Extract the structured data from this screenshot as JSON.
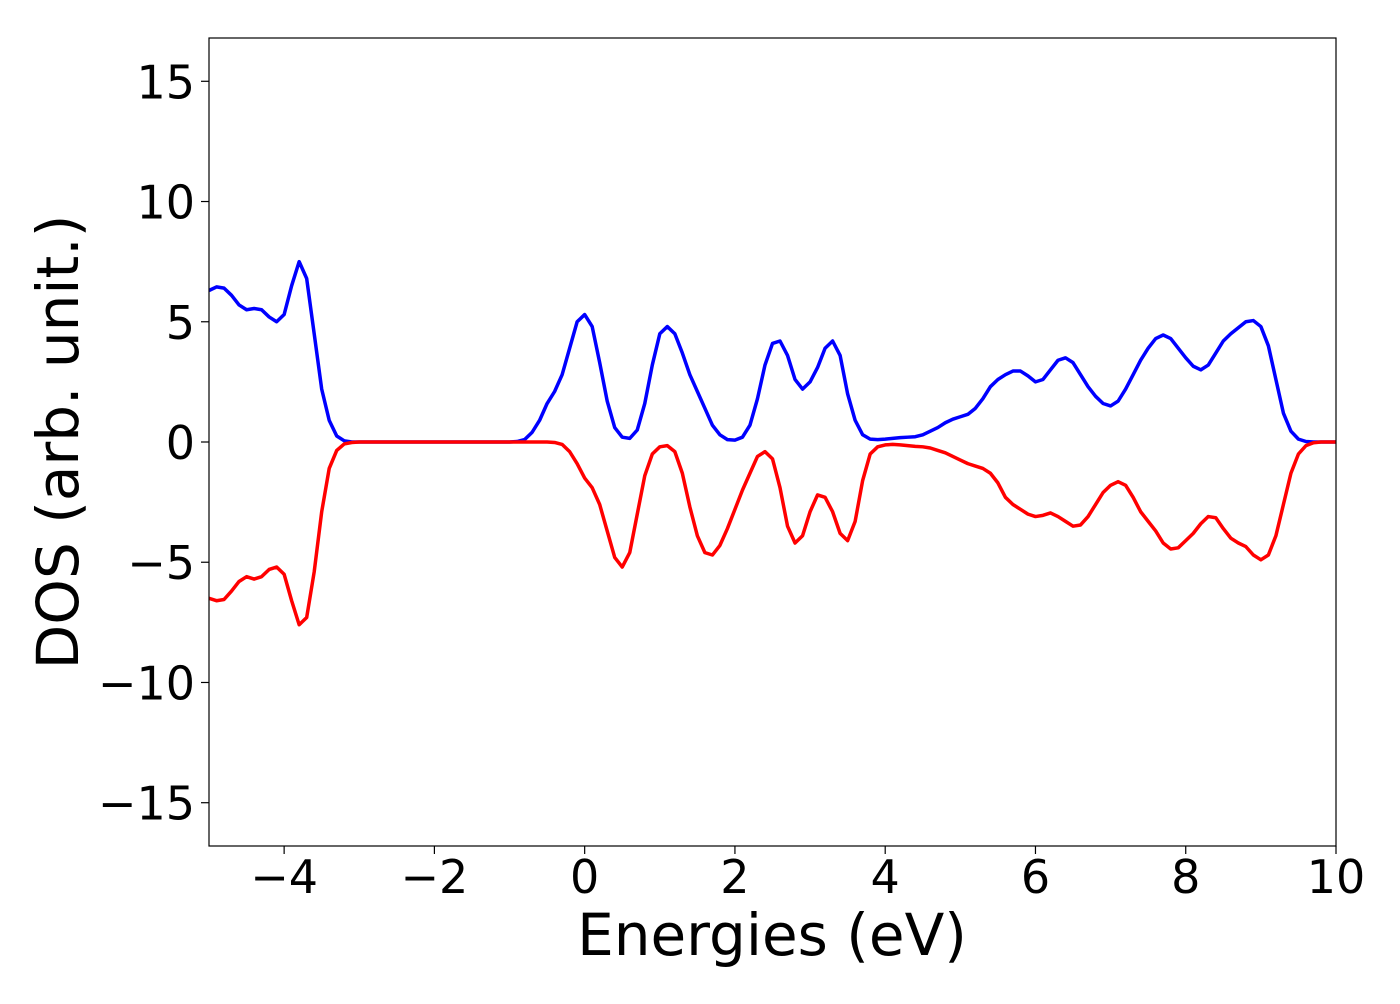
{
  "chart_data": {
    "type": "line",
    "x_label": "Energies (eV)",
    "y_label": "DOS (arb. unit.)",
    "xlim": [
      -5,
      10
    ],
    "ylim": [
      -16.8,
      16.8
    ],
    "xticks": [
      {
        "value": -4,
        "label": "−4"
      },
      {
        "value": -2,
        "label": "−2"
      },
      0,
      2,
      4,
      6,
      8,
      10
    ],
    "yticks": [
      {
        "value": -15,
        "label": "−15"
      },
      {
        "value": -10,
        "label": "−10"
      },
      {
        "value": -5,
        "label": "−5"
      },
      0,
      5,
      10,
      15
    ],
    "grid": false,
    "x": [
      -5,
      -4.9,
      -4.8,
      -4.7,
      -4.6,
      -4.5,
      -4.4,
      -4.3,
      -4.2,
      -4.1,
      -4,
      -3.9,
      -3.8,
      -3.7,
      -3.6,
      -3.5,
      -3.4,
      -3.3,
      -3.2,
      -3.1,
      -3,
      -2.9,
      -2.8,
      -2.7,
      -2.6,
      -2.5,
      -2.4,
      -2.3,
      -2.2,
      -2.1,
      -2,
      -1.9,
      -1.8,
      -1.7,
      -1.6,
      -1.5,
      -1.4,
      -1.3,
      -1.2,
      -1.1,
      -1,
      -0.9,
      -0.8,
      -0.7,
      -0.6,
      -0.5,
      -0.4,
      -0.3,
      -0.2,
      -0.1,
      0,
      0.1,
      0.2,
      0.3,
      0.4,
      0.5,
      0.6,
      0.7,
      0.8,
      0.9,
      1,
      1.1,
      1.2,
      1.3,
      1.4,
      1.5,
      1.6,
      1.7,
      1.8,
      1.9,
      2,
      2.1,
      2.2,
      2.3,
      2.4,
      2.5,
      2.6,
      2.7,
      2.8,
      2.9,
      3,
      3.1,
      3.2,
      3.3,
      3.4,
      3.5,
      3.6,
      3.7,
      3.8,
      3.9,
      4,
      4.1,
      4.2,
      4.3,
      4.4,
      4.5,
      4.6,
      4.7,
      4.8,
      4.9,
      5,
      5.1,
      5.2,
      5.3,
      5.4,
      5.5,
      5.6,
      5.7,
      5.8,
      5.9,
      6,
      6.1,
      6.2,
      6.3,
      6.4,
      6.5,
      6.6,
      6.7,
      6.8,
      6.9,
      7,
      7.1,
      7.2,
      7.3,
      7.4,
      7.5,
      7.6,
      7.7,
      7.8,
      7.9,
      8,
      8.1,
      8.2,
      8.3,
      8.4,
      8.5,
      8.6,
      8.7,
      8.8,
      8.9,
      9,
      9.1,
      9.2,
      9.3,
      9.4,
      9.5,
      9.6,
      9.7,
      9.8,
      9.9,
      10
    ],
    "series": [
      {
        "color": "#0000ff",
        "values": [
          6.3,
          6.45,
          6.4,
          6.1,
          5.7,
          5.5,
          5.55,
          5.5,
          5.2,
          5.0,
          5.3,
          6.5,
          7.5,
          6.8,
          4.5,
          2.2,
          0.9,
          0.25,
          0.05,
          0,
          0,
          0,
          0,
          0,
          0,
          0,
          0,
          0,
          0,
          0,
          0,
          0,
          0,
          0,
          0,
          0,
          0,
          0,
          0,
          0,
          0,
          0.02,
          0.1,
          0.4,
          0.9,
          1.6,
          2.1,
          2.8,
          3.9,
          5.0,
          5.3,
          4.8,
          3.3,
          1.7,
          0.6,
          0.2,
          0.15,
          0.5,
          1.6,
          3.2,
          4.5,
          4.8,
          4.5,
          3.7,
          2.8,
          2.1,
          1.4,
          0.7,
          0.3,
          0.1,
          0.08,
          0.2,
          0.7,
          1.8,
          3.2,
          4.1,
          4.2,
          3.6,
          2.6,
          2.2,
          2.5,
          3.1,
          3.9,
          4.2,
          3.6,
          2.0,
          0.9,
          0.3,
          0.12,
          0.1,
          0.12,
          0.15,
          0.18,
          0.2,
          0.22,
          0.3,
          0.45,
          0.6,
          0.8,
          0.95,
          1.05,
          1.15,
          1.4,
          1.8,
          2.3,
          2.6,
          2.8,
          2.95,
          2.95,
          2.75,
          2.5,
          2.6,
          3.0,
          3.4,
          3.5,
          3.3,
          2.8,
          2.3,
          1.9,
          1.6,
          1.5,
          1.7,
          2.2,
          2.8,
          3.4,
          3.9,
          4.3,
          4.45,
          4.3,
          3.9,
          3.5,
          3.15,
          3.0,
          3.2,
          3.7,
          4.2,
          4.5,
          4.75,
          5.0,
          5.05,
          4.8,
          4.0,
          2.6,
          1.2,
          0.45,
          0.12,
          0.02,
          0,
          0,
          0,
          0
        ]
      },
      {
        "color": "#ff0000",
        "values": [
          -6.5,
          -6.6,
          -6.55,
          -6.2,
          -5.8,
          -5.6,
          -5.7,
          -5.6,
          -5.3,
          -5.2,
          -5.5,
          -6.6,
          -7.6,
          -7.3,
          -5.4,
          -2.9,
          -1.1,
          -0.35,
          -0.08,
          -0.02,
          0,
          0,
          0,
          0,
          0,
          0,
          0,
          0,
          0,
          0,
          0,
          0,
          0,
          0,
          0,
          0,
          0,
          0,
          0,
          0,
          0,
          0,
          0,
          0,
          0,
          0,
          -0.02,
          -0.1,
          -0.4,
          -0.9,
          -1.5,
          -1.9,
          -2.6,
          -3.7,
          -4.8,
          -5.2,
          -4.6,
          -3.0,
          -1.4,
          -0.5,
          -0.2,
          -0.15,
          -0.4,
          -1.3,
          -2.7,
          -3.9,
          -4.6,
          -4.7,
          -4.3,
          -3.6,
          -2.8,
          -2.0,
          -1.3,
          -0.6,
          -0.4,
          -0.7,
          -1.9,
          -3.5,
          -4.2,
          -3.9,
          -2.9,
          -2.2,
          -2.3,
          -2.9,
          -3.8,
          -4.1,
          -3.3,
          -1.6,
          -0.5,
          -0.2,
          -0.12,
          -0.1,
          -0.12,
          -0.15,
          -0.18,
          -0.2,
          -0.25,
          -0.35,
          -0.45,
          -0.6,
          -0.75,
          -0.9,
          -1.0,
          -1.1,
          -1.3,
          -1.7,
          -2.3,
          -2.6,
          -2.8,
          -3.0,
          -3.1,
          -3.05,
          -2.95,
          -3.1,
          -3.3,
          -3.5,
          -3.45,
          -3.1,
          -2.6,
          -2.1,
          -1.8,
          -1.65,
          -1.8,
          -2.3,
          -2.9,
          -3.3,
          -3.7,
          -4.2,
          -4.45,
          -4.4,
          -4.1,
          -3.8,
          -3.4,
          -3.1,
          -3.15,
          -3.6,
          -4.0,
          -4.2,
          -4.35,
          -4.7,
          -4.9,
          -4.7,
          -3.9,
          -2.6,
          -1.3,
          -0.5,
          -0.15,
          -0.03,
          0,
          0,
          0
        ]
      }
    ]
  }
}
